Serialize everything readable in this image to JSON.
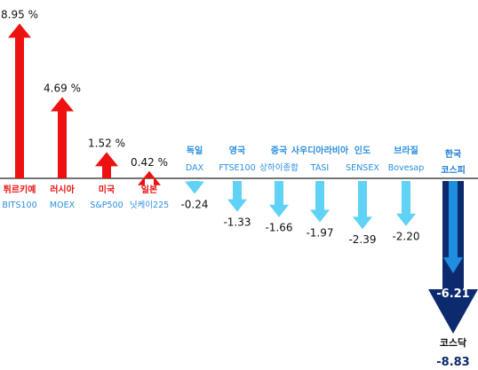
{
  "chart_data": {
    "type": "bar",
    "unit": "%",
    "colors": {
      "up": "#ee1111",
      "down": "#5fd2f5",
      "korea_outer": "#0d2a6e",
      "korea_inner": "#1e8ee0",
      "korea_label": "#1578d0",
      "up_label": "#ee1111",
      "down_label": "#2a8fe0",
      "axis": "#222222"
    },
    "categories": [
      {
        "country": "튀르키예",
        "index": "BITS100",
        "value": 8.95,
        "label": "8.95 %",
        "trend": "up"
      },
      {
        "country": "러시아",
        "index": "MOEX",
        "value": 4.69,
        "label": "4.69 %",
        "trend": "up"
      },
      {
        "country": "미국",
        "index": "S&P500",
        "value": 1.52,
        "label": "1.52 %",
        "trend": "up"
      },
      {
        "country": "일본",
        "index": "닛케이225",
        "value": 0.42,
        "label": "0.42 %",
        "trend": "up"
      },
      {
        "country": "독일",
        "index": "DAX",
        "value": -0.24,
        "label": "-0.24",
        "trend": "down"
      },
      {
        "country": "영국",
        "index": "FTSE100",
        "value": -1.33,
        "label": "-1.33",
        "trend": "down"
      },
      {
        "country": "중국",
        "index": "상하이종합",
        "value": -1.66,
        "label": "-1.66",
        "trend": "down"
      },
      {
        "country": "사우디아라비아",
        "index": "TASI",
        "value": -1.97,
        "label": "-1.97",
        "trend": "down"
      },
      {
        "country": "인도",
        "index": "SENSEX",
        "value": -2.39,
        "label": "-2.39",
        "trend": "down"
      },
      {
        "country": "브라질",
        "index": "Bovesap",
        "value": -2.2,
        "label": "-2.20",
        "trend": "down"
      }
    ],
    "korea": {
      "country": "한국",
      "index": "코스피",
      "value": -6.21,
      "label": "-6.21",
      "secondary_index": "코스닥",
      "secondary_value": -8.83,
      "secondary_label": "-8.83"
    }
  }
}
